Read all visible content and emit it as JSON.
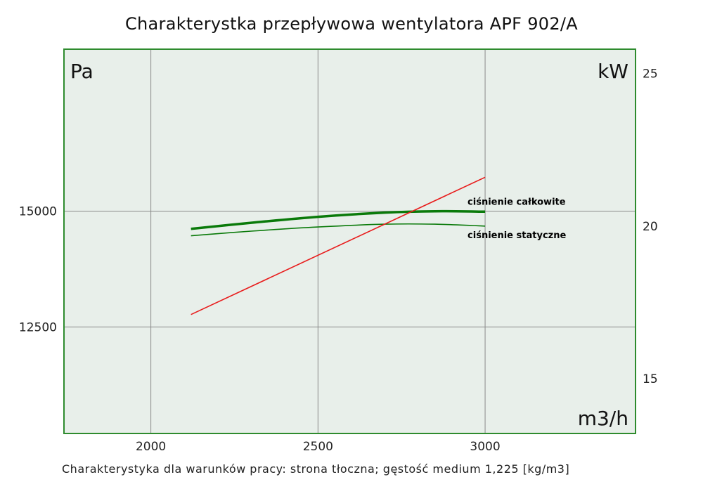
{
  "title": "Charakterystka przepływowa wentylatora APF 902/A",
  "footnote": "Charakterystyka dla warunków pracy: strona tłoczna; gęstość medium 1,225 [kg/m3]",
  "chart_data": {
    "type": "line",
    "title": "Charakterystka przepływowa wentylatora APF 902/A",
    "xlabel": "m3/h",
    "ylabel": "Pa",
    "y2label": "kW",
    "xlim": [
      1740,
      3450
    ],
    "ylim": [
      10200,
      18500
    ],
    "y2lim": [
      13.2,
      25.8
    ],
    "x_ticks": [
      2000,
      2500,
      3000
    ],
    "y_ticks": [
      12500,
      15000
    ],
    "y2_ticks": [
      15,
      20,
      25
    ],
    "grid": true,
    "series": [
      {
        "name": "ciśnienie całkowite",
        "axis": "left",
        "color": "#0a7a0a",
        "width": 3.5,
        "x": [
          2120,
          2300,
          2500,
          2700,
          2850,
          3000
        ],
        "y": [
          14620,
          14750,
          14880,
          14970,
          15000,
          14990
        ]
      },
      {
        "name": "ciśnienie statyczne",
        "axis": "left",
        "color": "#0a7a0a",
        "width": 1.6,
        "x": [
          2120,
          2300,
          2500,
          2700,
          2850,
          3000
        ],
        "y": [
          14470,
          14570,
          14660,
          14720,
          14720,
          14680
        ]
      },
      {
        "name": "",
        "axis": "right",
        "color": "#e81c1c",
        "width": 1.6,
        "x": [
          2120,
          3000
        ],
        "y": [
          17.1,
          21.6
        ]
      }
    ]
  },
  "colors": {
    "plot_background": "#e8efea",
    "plot_border": "#2e8b2e",
    "grid": "#8a8a8a"
  }
}
